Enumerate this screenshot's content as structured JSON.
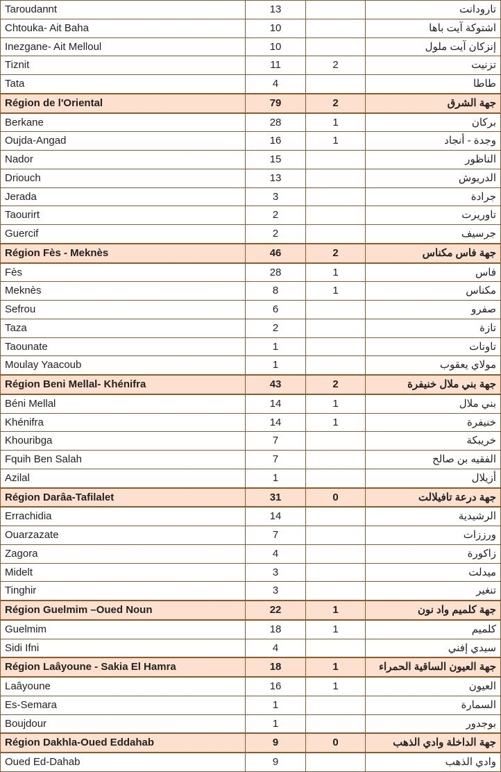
{
  "colors": {
    "border": "#8b5a2b",
    "region_bg": "#fde1ce",
    "text": "#222222",
    "background": "#ffffff"
  },
  "columns": {
    "widths_pct": [
      49,
      12,
      12,
      27
    ],
    "align": [
      "left",
      "center",
      "center",
      "right"
    ]
  },
  "font": {
    "family": "Segoe UI / Arial",
    "size_pt": 11
  },
  "rows": [
    {
      "type": "data",
      "fr": "Taroudannt",
      "v1": "13",
      "v2": "",
      "ar": "تارودانت"
    },
    {
      "type": "data",
      "fr": "Chtouka- Ait Baha",
      "v1": "10",
      "v2": "",
      "ar": "اشتوكة آيت باها"
    },
    {
      "type": "data",
      "fr": "Inezgane- Ait Melloul",
      "v1": "10",
      "v2": "",
      "ar": "إنزكان آيت ملول"
    },
    {
      "type": "data",
      "fr": "Tiznit",
      "v1": "11",
      "v2": "2",
      "ar": "تزنيت"
    },
    {
      "type": "data",
      "fr": "Tata",
      "v1": "4",
      "v2": "",
      "ar": "طاطا"
    },
    {
      "type": "region",
      "fr": "Région de l'Oriental",
      "v1": "79",
      "v2": "2",
      "ar": "جهة الشرق"
    },
    {
      "type": "data",
      "fr": "Berkane",
      "v1": "28",
      "v2": "1",
      "ar": "بركان"
    },
    {
      "type": "data",
      "fr": "Oujda-Angad",
      "v1": "16",
      "v2": "1",
      "ar": "وجدة - أنجاد"
    },
    {
      "type": "data",
      "fr": "Nador",
      "v1": "15",
      "v2": "",
      "ar": "الناظور"
    },
    {
      "type": "data",
      "fr": "Driouch",
      "v1": "13",
      "v2": "",
      "ar": "الدريوش"
    },
    {
      "type": "data",
      "fr": "Jerada",
      "v1": "3",
      "v2": "",
      "ar": "جرادة"
    },
    {
      "type": "data",
      "fr": "Taourirt",
      "v1": "2",
      "v2": "",
      "ar": "تاوريرت"
    },
    {
      "type": "data",
      "fr": "Guercif",
      "v1": "2",
      "v2": "",
      "ar": "جرسيف"
    },
    {
      "type": "region",
      "fr": "Région Fès - Meknès",
      "v1": "46",
      "v2": "2",
      "ar": "جهة فاس مكناس"
    },
    {
      "type": "data",
      "fr": "Fès",
      "v1": "28",
      "v2": "1",
      "ar": "فاس"
    },
    {
      "type": "data",
      "fr": "Meknès",
      "v1": "8",
      "v2": "1",
      "ar": "مكناس"
    },
    {
      "type": "data",
      "fr": "Sefrou",
      "v1": "6",
      "v2": "",
      "ar": "صفرو"
    },
    {
      "type": "data",
      "fr": "Taza",
      "v1": "2",
      "v2": "",
      "ar": "تازة"
    },
    {
      "type": "data",
      "fr": "Taounate",
      "v1": "1",
      "v2": "",
      "ar": "تاونات"
    },
    {
      "type": "data",
      "fr": "Moulay Yaacoub",
      "v1": "1",
      "v2": "",
      "ar": "مولاي يعقوب"
    },
    {
      "type": "region",
      "fr": "Région Beni Mellal- Khénifra",
      "v1": "43",
      "v2": "2",
      "ar": "جهة بني ملال خنيفرة"
    },
    {
      "type": "data",
      "fr": "Béni Mellal",
      "v1": "14",
      "v2": "1",
      "ar": "بني ملال"
    },
    {
      "type": "data",
      "fr": "Khénifra",
      "v1": "14",
      "v2": "1",
      "ar": "خنيفرة"
    },
    {
      "type": "data",
      "fr": "Khouribga",
      "v1": "7",
      "v2": "",
      "ar": "خريبكة"
    },
    {
      "type": "data",
      "fr": "Fquih Ben Salah",
      "v1": "7",
      "v2": "",
      "ar": "الفقيه بن صالح"
    },
    {
      "type": "data",
      "fr": "Azilal",
      "v1": "1",
      "v2": "",
      "ar": "أزيلال"
    },
    {
      "type": "region",
      "fr": "Région Darâa-Tafilalet",
      "v1": "31",
      "v2": "0",
      "ar": "جهة درعة تافيلالت"
    },
    {
      "type": "data",
      "fr": "Errachidia",
      "v1": "14",
      "v2": "",
      "ar": "الرشيدية"
    },
    {
      "type": "data",
      "fr": "Ouarzazate",
      "v1": "7",
      "v2": "",
      "ar": "ورززات"
    },
    {
      "type": "data",
      "fr": "Zagora",
      "v1": "4",
      "v2": "",
      "ar": "زاكورة"
    },
    {
      "type": "data",
      "fr": "Midelt",
      "v1": "3",
      "v2": "",
      "ar": "ميدلت"
    },
    {
      "type": "data",
      "fr": "Tinghir",
      "v1": "3",
      "v2": "",
      "ar": "تنغير"
    },
    {
      "type": "region",
      "fr": "Région Guelmim –Oued Noun",
      "v1": "22",
      "v2": "1",
      "ar": "جهة كلميم واد نون"
    },
    {
      "type": "data",
      "fr": "Guelmim",
      "v1": "18",
      "v2": "1",
      "ar": "كلميم"
    },
    {
      "type": "data",
      "fr": "Sidi Ifni",
      "v1": "4",
      "v2": "",
      "ar": "سيدي إفني"
    },
    {
      "type": "region",
      "fr": "Région Laâyoune - Sakia El Hamra",
      "v1": "18",
      "v2": "1",
      "ar": "جهة العيون الساقية الحمراء"
    },
    {
      "type": "data",
      "fr": "Laâyoune",
      "v1": "16",
      "v2": "1",
      "ar": "العيون"
    },
    {
      "type": "data",
      "fr": "Es-Semara",
      "v1": "1",
      "v2": "",
      "ar": "السمارة"
    },
    {
      "type": "data",
      "fr": "Boujdour",
      "v1": "1",
      "v2": "",
      "ar": "بوجدور"
    },
    {
      "type": "region",
      "fr": "Région Dakhla-Oued Eddahab",
      "v1": "9",
      "v2": "0",
      "ar": "جهة الداخلة وادي الذهب"
    },
    {
      "type": "data",
      "fr": "Oued Ed-Dahab",
      "v1": "9",
      "v2": "",
      "ar": "وادي الذهب"
    }
  ]
}
